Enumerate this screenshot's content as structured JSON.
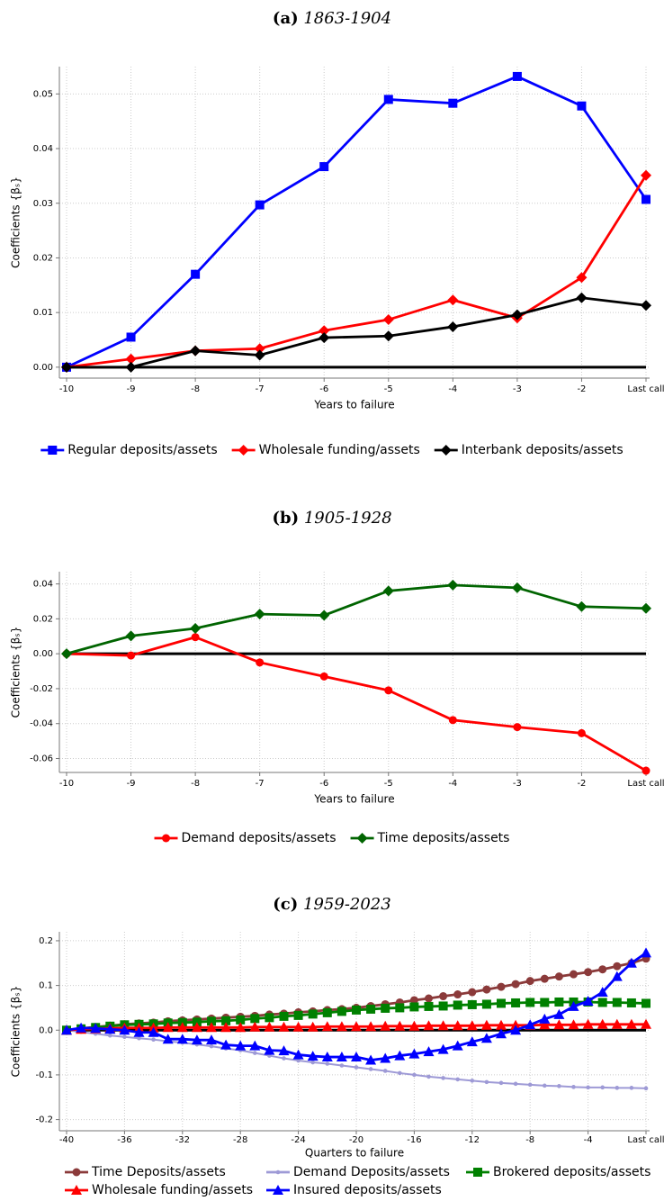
{
  "chart_data": [
    {
      "type": "line",
      "panel_label": "(a)",
      "title": "1863-1904",
      "xlabel": "Years to failure",
      "ylabel": "Coefficients {βₛ}",
      "categories": [
        "-10",
        "-9",
        "-8",
        "-7",
        "-6",
        "-5",
        "-4",
        "-3",
        "-2",
        "Last call"
      ],
      "series": [
        {
          "name": "Regular deposits/assets",
          "color": "#0000ff",
          "marker": "square",
          "values": [
            0,
            0.0055,
            0.017,
            0.0297,
            0.0367,
            0.049,
            0.0483,
            0.0532,
            0.0478,
            0.0307
          ]
        },
        {
          "name": "Wholesale funding/assets",
          "color": "#ff0000",
          "marker": "diamond",
          "values": [
            0,
            0.0015,
            0.003,
            0.0034,
            0.0067,
            0.0087,
            0.0123,
            0.009,
            0.0164,
            0.0351
          ]
        },
        {
          "name": "Interbank deposits/assets",
          "color": "#000000",
          "marker": "diamond",
          "values": [
            0,
            0,
            0.003,
            0.0022,
            0.0054,
            0.0057,
            0.0074,
            0.0096,
            0.0127,
            0.0113
          ]
        }
      ],
      "ylim": [
        -0.002,
        0.055
      ],
      "yticks": [
        {
          "value": 0,
          "label": "0.00"
        },
        0.01,
        0.02,
        0.03,
        0.04,
        0.05
      ],
      "grid": true,
      "legend_columns": 3
    },
    {
      "type": "line",
      "panel_label": "(b)",
      "title": "1905-1928",
      "xlabel": "Years to failure",
      "ylabel": "Coefficients {βₛ}",
      "categories": [
        "-10",
        "-9",
        "-8",
        "-7",
        "-6",
        "-5",
        "-4",
        "-3",
        "-2",
        "Last call"
      ],
      "series": [
        {
          "name": "Demand deposits/assets",
          "color": "#ff0000",
          "marker": "circle",
          "values": [
            0,
            -0.001,
            0.0095,
            -0.005,
            -0.013,
            -0.021,
            -0.038,
            -0.042,
            -0.0455,
            -0.067
          ]
        },
        {
          "name": "Time deposits/assets",
          "color": "#006400",
          "marker": "diamond",
          "values": [
            0,
            0.0102,
            0.0145,
            0.0227,
            0.022,
            0.036,
            0.0393,
            0.0378,
            0.027,
            0.026
          ]
        }
      ],
      "ylim": [
        -0.068,
        0.047
      ],
      "yticks": [
        -0.06,
        -0.04,
        -0.02,
        {
          "value": 0,
          "label": "0.00"
        },
        0.02,
        0.04
      ],
      "grid": true,
      "legend_columns": 2
    },
    {
      "type": "line",
      "panel_label": "(c)",
      "title": "1959-2023",
      "xlabel": "Quarters to failure",
      "ylabel": "Coefficients {βₛ}",
      "categories": [
        "-40",
        null,
        null,
        null,
        "-36",
        null,
        null,
        null,
        "-32",
        null,
        null,
        null,
        "-28",
        null,
        null,
        null,
        "-24",
        null,
        null,
        null,
        "-20",
        null,
        null,
        null,
        "-16",
        null,
        null,
        null,
        "-12",
        null,
        null,
        null,
        "-8",
        null,
        null,
        null,
        "-4",
        null,
        null,
        null,
        "Last call"
      ],
      "series": [
        {
          "name": "Time Deposits/assets",
          "color": "#8b3a3a",
          "marker": "circle",
          "values": [
            0,
            0.004,
            0.007,
            0.01,
            0.013,
            0.015,
            0.017,
            0.02,
            0.022,
            0.024,
            0.026,
            0.028,
            0.03,
            0.032,
            0.035,
            0.037,
            0.04,
            0.042,
            0.045,
            0.047,
            0.05,
            0.054,
            0.058,
            0.062,
            0.067,
            0.071,
            0.076,
            0.08,
            0.085,
            0.091,
            0.097,
            0.103,
            0.11,
            0.115,
            0.12,
            0.125,
            0.13,
            0.136,
            0.143,
            0.15,
            0.16
          ]
        },
        {
          "name": "Demand Deposits/assets",
          "color": "#9e9ad6",
          "marker": "dot",
          "values": [
            0,
            -0.004,
            -0.008,
            -0.012,
            -0.015,
            -0.018,
            -0.021,
            -0.025,
            -0.028,
            -0.032,
            -0.036,
            -0.041,
            -0.045,
            -0.051,
            -0.057,
            -0.063,
            -0.068,
            -0.072,
            -0.075,
            -0.079,
            -0.083,
            -0.087,
            -0.091,
            -0.096,
            -0.1,
            -0.104,
            -0.107,
            -0.11,
            -0.113,
            -0.116,
            -0.118,
            -0.12,
            -0.122,
            -0.124,
            -0.125,
            -0.127,
            -0.128,
            -0.128,
            -0.129,
            -0.129,
            -0.13
          ]
        },
        {
          "name": "Brokered deposits/assets",
          "color": "#008000",
          "marker": "square",
          "values": [
            0,
            0.003,
            0.006,
            0.009,
            0.012,
            0.013,
            0.014,
            0.016,
            0.017,
            0.018,
            0.02,
            0.021,
            0.023,
            0.026,
            0.028,
            0.031,
            0.033,
            0.036,
            0.039,
            0.042,
            0.045,
            0.047,
            0.049,
            0.05,
            0.052,
            0.053,
            0.054,
            0.056,
            0.057,
            0.058,
            0.06,
            0.061,
            0.062,
            0.062,
            0.063,
            0.063,
            0.063,
            0.062,
            0.062,
            0.061,
            0.06
          ]
        },
        {
          "name": "Wholesale funding/assets",
          "color": "#ff0000",
          "marker": "triangle",
          "values": [
            0,
            0.002,
            0.003,
            0.004,
            0.005,
            0.005,
            0.005,
            0.006,
            0.006,
            0.006,
            0.006,
            0.006,
            0.006,
            0.007,
            0.007,
            0.007,
            0.007,
            0.007,
            0.008,
            0.008,
            0.008,
            0.008,
            0.009,
            0.009,
            0.009,
            0.01,
            0.01,
            0.01,
            0.01,
            0.011,
            0.011,
            0.011,
            0.011,
            0.012,
            0.012,
            0.012,
            0.013,
            0.013,
            0.013,
            0.013,
            0.013
          ]
        },
        {
          "name": "Insured deposits/assets",
          "color": "#0000ff",
          "marker": "triangle",
          "values": [
            0,
            0.005,
            0.004,
            0.002,
            0,
            -0.005,
            -0.005,
            -0.02,
            -0.02,
            -0.022,
            -0.022,
            -0.033,
            -0.035,
            -0.035,
            -0.045,
            -0.046,
            -0.055,
            -0.058,
            -0.06,
            -0.06,
            -0.06,
            -0.067,
            -0.063,
            -0.057,
            -0.053,
            -0.048,
            -0.043,
            -0.035,
            -0.026,
            -0.018,
            -0.008,
            0,
            0.012,
            0.025,
            0.035,
            0.053,
            0.065,
            0.085,
            0.12,
            0.15,
            0.173
          ]
        }
      ],
      "ylim": [
        -0.225,
        0.22
      ],
      "yticks": [
        -0.2,
        -0.1,
        {
          "value": 0,
          "label": "0.0"
        },
        0.1,
        0.2
      ],
      "grid": true,
      "legend_columns": 3
    }
  ]
}
